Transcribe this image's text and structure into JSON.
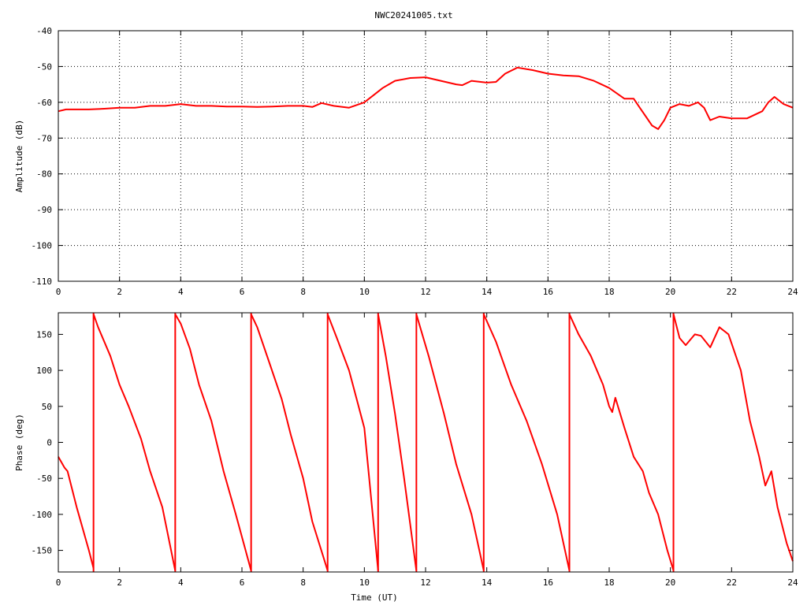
{
  "title": "NWC20241005.txt",
  "chart_data": [
    {
      "type": "line",
      "xlabel": "",
      "ylabel": "Amplitude (dB)",
      "xlim": [
        0,
        24
      ],
      "ylim": [
        -110,
        -40
      ],
      "xticks": [
        "0",
        "2",
        "4",
        "6",
        "8",
        "10",
        "12",
        "14",
        "16",
        "18",
        "20",
        "22",
        "24"
      ],
      "yticks": [
        "-40",
        "-50",
        "-60",
        "-70",
        "-80",
        "-90",
        "-100",
        "-110"
      ],
      "grid": true,
      "series": [
        {
          "color": "#ff0000",
          "x": [
            0,
            0.25,
            0.5,
            1,
            1.5,
            2,
            2.5,
            3,
            3.5,
            4,
            4.5,
            5,
            5.5,
            6,
            6.5,
            7,
            7.5,
            8,
            8.3,
            8.6,
            9,
            9.5,
            10,
            10.3,
            10.6,
            10.8,
            11,
            11.5,
            12,
            12.5,
            13,
            13.2,
            13.5,
            14,
            14.3,
            14.6,
            15,
            15.5,
            16,
            16.5,
            17,
            17.5,
            18,
            18.5,
            18.8,
            19,
            19.2,
            19.4,
            19.6,
            19.8,
            20,
            20.3,
            20.6,
            20.9,
            21.1,
            21.3,
            21.6,
            22,
            22.5,
            23,
            23.2,
            23.4,
            23.7,
            24
          ],
          "y": [
            -62.5,
            -62,
            -62,
            -62,
            -61.8,
            -61.5,
            -61.5,
            -61,
            -61,
            -60.5,
            -61,
            -61,
            -61.2,
            -61.2,
            -61.3,
            -61.2,
            -61,
            -61,
            -61.3,
            -60.2,
            -61,
            -61.5,
            -60,
            -58,
            -56,
            -55,
            -54,
            -53.2,
            -53,
            -54,
            -55,
            -55.2,
            -54,
            -54.5,
            -54.3,
            -52,
            -50.3,
            -51,
            -52,
            -52.5,
            -52.7,
            -54,
            -56,
            -59,
            -59,
            -61.5,
            -64,
            -66.5,
            -67.5,
            -65,
            -61.5,
            -60.5,
            -61,
            -60,
            -61.5,
            -65,
            -64,
            -64.5,
            -64.5,
            -62.5,
            -60,
            -58.5,
            -60.5,
            -61.5
          ]
        }
      ]
    },
    {
      "type": "line",
      "xlabel": "Time (UT)",
      "ylabel": "Phase (deg)",
      "xlim": [
        0,
        24
      ],
      "ylim": [
        -180,
        180
      ],
      "xticks": [
        "0",
        "2",
        "4",
        "6",
        "8",
        "10",
        "12",
        "14",
        "16",
        "18",
        "20",
        "22",
        "24"
      ],
      "yticks": [
        "150",
        "100",
        "50",
        "0",
        "-50",
        "-100",
        "-150"
      ],
      "grid": false,
      "wraps": [
        1.15,
        3.82,
        6.3,
        8.8,
        10.45,
        11.7,
        13.9,
        16.7,
        20.1
      ],
      "series": [
        {
          "color": "#ff0000",
          "segments": [
            {
              "x": [
                0,
                0.2,
                0.3,
                0.6,
                1.0,
                1.15
              ],
              "y": [
                -20,
                -35,
                -40,
                -90,
                -150,
                -175
              ]
            },
            {
              "x": [
                1.15,
                1.3,
                1.7,
                2.0,
                2.3,
                2.7,
                3.0,
                3.4,
                3.82
              ],
              "y": [
                178,
                160,
                120,
                80,
                50,
                5,
                -40,
                -90,
                -178
              ]
            },
            {
              "x": [
                3.82,
                4.0,
                4.3,
                4.6,
                5.0,
                5.4,
                5.8,
                6.3
              ],
              "y": [
                178,
                165,
                130,
                80,
                30,
                -40,
                -100,
                -178
              ]
            },
            {
              "x": [
                6.3,
                6.5,
                6.9,
                7.3,
                7.6,
                8.0,
                8.3,
                8.8
              ],
              "y": [
                178,
                160,
                110,
                60,
                10,
                -50,
                -110,
                -178
              ]
            },
            {
              "x": [
                8.8,
                9.1,
                9.5,
                10.0,
                10.45
              ],
              "y": [
                178,
                145,
                100,
                20,
                -178
              ]
            },
            {
              "x": [
                10.45,
                10.7,
                11.0,
                11.3,
                11.7
              ],
              "y": [
                178,
                120,
                40,
                -50,
                -178
              ]
            },
            {
              "x": [
                11.7,
                12.1,
                12.6,
                13.0,
                13.5,
                13.9
              ],
              "y": [
                178,
                120,
                40,
                -30,
                -100,
                -178
              ]
            },
            {
              "x": [
                13.9,
                14.3,
                14.8,
                15.3,
                15.8,
                16.3,
                16.7
              ],
              "y": [
                178,
                140,
                80,
                30,
                -30,
                -100,
                -178
              ]
            },
            {
              "x": [
                16.7,
                17.0,
                17.4,
                17.8,
                18.0,
                18.1,
                18.2,
                18.5,
                18.8,
                19.1,
                19.3,
                19.6,
                19.9,
                20.1
              ],
              "y": [
                178,
                150,
                120,
                80,
                50,
                42,
                62,
                20,
                -20,
                -40,
                -70,
                -100,
                -150,
                -178
              ]
            },
            {
              "x": [
                20.1,
                20.3,
                20.5,
                20.8,
                21.0,
                21.3,
                21.6,
                21.9,
                22.3,
                22.6,
                22.9,
                23.1,
                23.3,
                23.5,
                23.8,
                24.0
              ],
              "y": [
                178,
                145,
                135,
                150,
                148,
                132,
                160,
                150,
                100,
                30,
                -20,
                -60,
                -40,
                -90,
                -140,
                -165
              ]
            }
          ]
        }
      ]
    }
  ]
}
